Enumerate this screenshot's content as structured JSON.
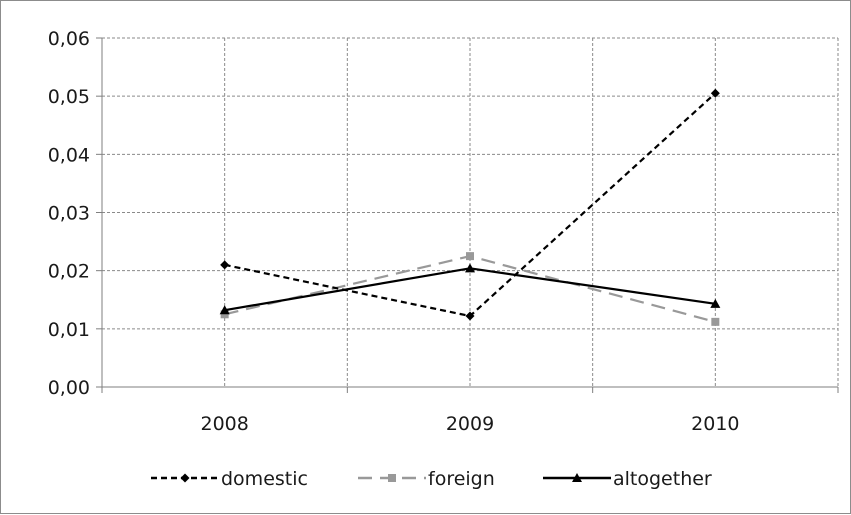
{
  "chart_data": {
    "type": "line",
    "title": "",
    "xlabel": "",
    "ylabel": "",
    "categories": [
      "2008",
      "2009",
      "2010"
    ],
    "ylim": [
      0,
      0.06
    ],
    "yticks": [
      0,
      0.01,
      0.02,
      0.03,
      0.04,
      0.05,
      0.06
    ],
    "ytick_labels": [
      "0,00",
      "0,01",
      "0,02",
      "0,03",
      "0,04",
      "0,05",
      "0,06"
    ],
    "grid": true,
    "legend_position": "bottom",
    "series": [
      {
        "name": "domestic",
        "values": [
          0.021,
          0.0122,
          0.0505
        ],
        "color": "#000000",
        "line_style": "dashed",
        "marker": "diamond"
      },
      {
        "name": "foreign",
        "values": [
          0.0125,
          0.0225,
          0.0112
        ],
        "color": "#999999",
        "line_style": "long-dashed",
        "marker": "square"
      },
      {
        "name": "altogether",
        "values": [
          0.0132,
          0.0204,
          0.0143
        ],
        "color": "#000000",
        "line_style": "solid",
        "marker": "triangle"
      }
    ]
  }
}
